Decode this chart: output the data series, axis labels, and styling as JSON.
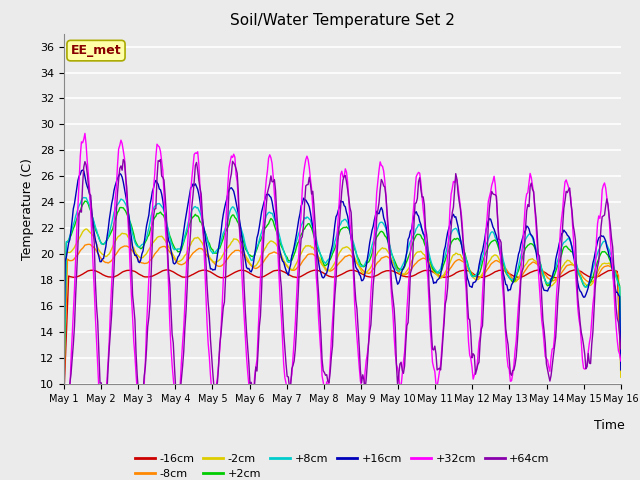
{
  "title": "Soil/Water Temperature Set 2",
  "xlabel": "Time",
  "ylabel": "Temperature (C)",
  "ylim": [
    10,
    37
  ],
  "yticks": [
    10,
    12,
    14,
    16,
    18,
    20,
    22,
    24,
    26,
    28,
    30,
    32,
    34,
    36
  ],
  "annotation": "EE_met",
  "series_colors": {
    "-16cm": "#cc0000",
    "-8cm": "#ff8800",
    "-2cm": "#ddcc00",
    "+2cm": "#00cc00",
    "+8cm": "#00cccc",
    "+16cm": "#0000bb",
    "+32cm": "#ff00ff",
    "+64cm": "#8800aa"
  },
  "legend_order": [
    "-16cm",
    "-8cm",
    "-2cm",
    "+2cm",
    "+8cm",
    "+16cm",
    "+32cm",
    "+64cm"
  ],
  "xtick_labels": [
    "May 1",
    "May 2",
    "May 3",
    "May 4",
    "May 5",
    "May 6",
    "May 7",
    "May 8",
    "May 9",
    "May 10",
    "May 11",
    "May 12",
    "May 13",
    "May 14",
    "May 15",
    "May 16"
  ],
  "n_points": 480,
  "lw": 1.0
}
